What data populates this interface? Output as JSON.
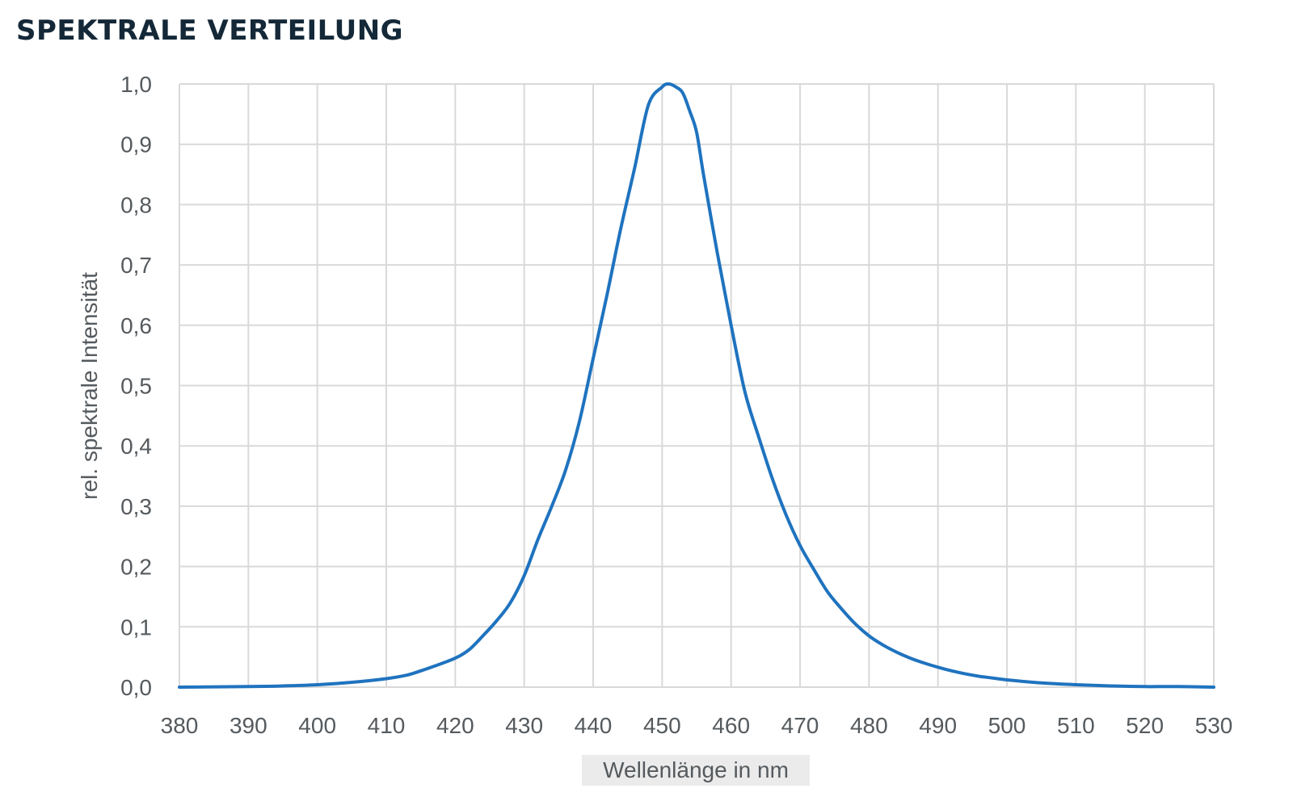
{
  "chart_data": {
    "type": "line",
    "title": "SPEKTRALE VERTEILUNG",
    "xlabel": "Wellenlänge in nm",
    "ylabel": "rel. spektrale Intensität",
    "xlim": [
      380,
      530
    ],
    "ylim": [
      0,
      1.0
    ],
    "x_ticks": [
      "380",
      "390",
      "400",
      "410",
      "420",
      "430",
      "440",
      "450",
      "460",
      "470",
      "480",
      "490",
      "500",
      "510",
      "520",
      "530"
    ],
    "y_ticks": [
      "0,0",
      "0,1",
      "0,2",
      "0,3",
      "0,4",
      "0,5",
      "0,6",
      "0,7",
      "0,8",
      "0,9",
      "1,0"
    ],
    "grid": true,
    "legend": "none",
    "line_color": "#1f73bf",
    "series": [
      {
        "x": [
          380,
          390,
          395,
          400,
          405,
          410,
          413,
          415,
          417,
          420,
          422,
          424,
          426,
          428,
          430,
          432,
          434,
          436,
          438,
          440,
          442,
          444,
          446,
          448,
          450,
          451,
          452,
          453,
          454,
          455,
          456,
          458,
          460,
          462,
          464,
          466,
          468,
          470,
          472,
          474,
          476,
          478,
          480,
          482,
          484,
          486,
          488,
          490,
          492,
          494,
          496,
          498,
          500,
          505,
          510,
          515,
          520,
          525,
          530
        ],
        "y": [
          0.0,
          0.001,
          0.002,
          0.004,
          0.008,
          0.014,
          0.02,
          0.027,
          0.035,
          0.048,
          0.062,
          0.085,
          0.11,
          0.14,
          0.185,
          0.245,
          0.3,
          0.36,
          0.44,
          0.545,
          0.65,
          0.76,
          0.86,
          0.965,
          0.995,
          1.0,
          0.995,
          0.985,
          0.955,
          0.92,
          0.85,
          0.72,
          0.6,
          0.49,
          0.415,
          0.345,
          0.285,
          0.235,
          0.195,
          0.158,
          0.13,
          0.105,
          0.085,
          0.07,
          0.058,
          0.048,
          0.04,
          0.033,
          0.027,
          0.022,
          0.018,
          0.015,
          0.012,
          0.007,
          0.004,
          0.002,
          0.001,
          0.001,
          0.0
        ]
      }
    ]
  }
}
